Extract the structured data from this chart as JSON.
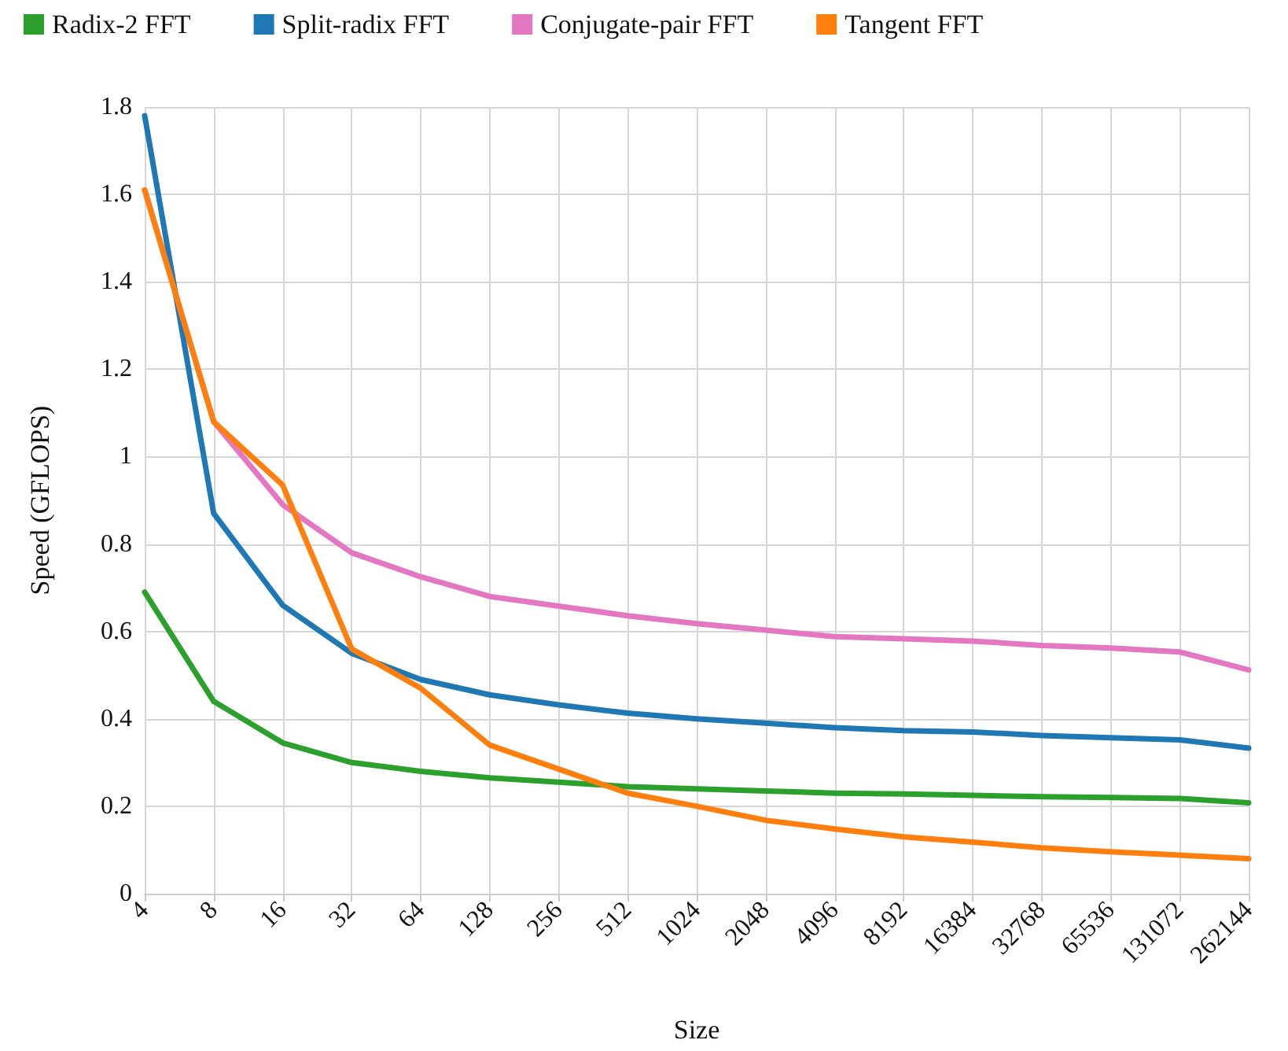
{
  "chart_data": {
    "type": "line",
    "xlabel": "Size",
    "ylabel": "Speed (GFLOPS)",
    "categories": [
      "4",
      "8",
      "16",
      "32",
      "64",
      "128",
      "256",
      "512",
      "1024",
      "2048",
      "4096",
      "8192",
      "16384",
      "32768",
      "65536",
      "131072",
      "262144"
    ],
    "series": [
      {
        "name": "Radix-2 FFT",
        "color": "#2ca02c",
        "values": [
          0.69,
          0.44,
          0.345,
          0.3,
          0.28,
          0.265,
          0.255,
          0.245,
          0.24,
          0.235,
          0.23,
          0.228,
          0.225,
          0.222,
          0.22,
          0.218,
          0.208
        ]
      },
      {
        "name": "Split-radix FFT",
        "color": "#1f77b4",
        "values": [
          1.78,
          0.87,
          0.66,
          0.55,
          0.49,
          0.455,
          0.432,
          0.413,
          0.4,
          0.39,
          0.38,
          0.373,
          0.37,
          0.362,
          0.357,
          0.352,
          0.333
        ]
      },
      {
        "name": "Conjugate-pair FFT",
        "color": "#e377c2",
        "values": [
          1.61,
          1.08,
          0.89,
          0.78,
          0.725,
          0.68,
          0.658,
          0.636,
          0.618,
          0.603,
          0.588,
          0.583,
          0.578,
          0.568,
          0.562,
          0.553,
          0.512
        ]
      },
      {
        "name": "Tangent FFT",
        "color": "#ff7f0e",
        "values": [
          1.61,
          1.08,
          0.935,
          0.56,
          0.47,
          0.34,
          0.285,
          0.23,
          0.2,
          0.168,
          0.148,
          0.13,
          0.118,
          0.105,
          0.096,
          0.088,
          0.08
        ]
      }
    ],
    "ylim": [
      0,
      1.8
    ],
    "yticks": [
      0,
      0.2,
      0.4,
      0.6,
      0.8,
      1,
      1.2,
      1.4,
      1.6,
      1.8
    ],
    "grid": true,
    "legend": "top left",
    "marker": "none",
    "line_style": "solid"
  }
}
